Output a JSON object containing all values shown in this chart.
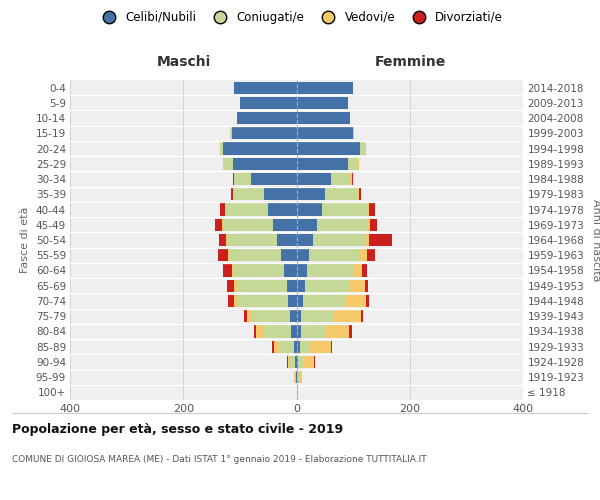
{
  "age_groups": [
    "100+",
    "95-99",
    "90-94",
    "85-89",
    "80-84",
    "75-79",
    "70-74",
    "65-69",
    "60-64",
    "55-59",
    "50-54",
    "45-49",
    "40-44",
    "35-39",
    "30-34",
    "25-29",
    "20-24",
    "15-19",
    "10-14",
    "5-9",
    "0-4"
  ],
  "birth_years": [
    "≤ 1918",
    "1919-1923",
    "1924-1928",
    "1929-1933",
    "1934-1938",
    "1939-1943",
    "1944-1948",
    "1949-1953",
    "1954-1958",
    "1959-1963",
    "1964-1968",
    "1969-1973",
    "1974-1978",
    "1979-1983",
    "1984-1988",
    "1989-1993",
    "1994-1998",
    "1999-2003",
    "2004-2008",
    "2009-2013",
    "2014-2018"
  ],
  "maschi": {
    "celibi": [
      0,
      1,
      3,
      5,
      10,
      12,
      15,
      18,
      22,
      28,
      35,
      42,
      50,
      58,
      80,
      112,
      130,
      115,
      105,
      100,
      110
    ],
    "coniugati": [
      0,
      2,
      8,
      25,
      50,
      68,
      88,
      88,
      90,
      90,
      88,
      88,
      75,
      55,
      30,
      18,
      5,
      2,
      0,
      0,
      0
    ],
    "vedovi": [
      0,
      1,
      5,
      10,
      12,
      8,
      8,
      5,
      3,
      3,
      2,
      2,
      1,
      0,
      0,
      0,
      0,
      0,
      0,
      0,
      0
    ],
    "divorziati": [
      0,
      0,
      2,
      3,
      3,
      5,
      10,
      12,
      15,
      18,
      12,
      12,
      10,
      3,
      3,
      0,
      0,
      0,
      0,
      0,
      0
    ]
  },
  "femmine": {
    "nubili": [
      0,
      1,
      3,
      5,
      8,
      8,
      12,
      15,
      18,
      22,
      28,
      35,
      45,
      50,
      60,
      90,
      112,
      100,
      95,
      90,
      100
    ],
    "coniugate": [
      0,
      3,
      8,
      18,
      42,
      58,
      75,
      78,
      82,
      90,
      92,
      90,
      80,
      58,
      35,
      18,
      10,
      2,
      0,
      0,
      0
    ],
    "vedove": [
      0,
      5,
      20,
      38,
      42,
      48,
      35,
      28,
      15,
      12,
      8,
      5,
      3,
      2,
      2,
      2,
      0,
      0,
      0,
      0,
      0
    ],
    "divorziate": [
      0,
      0,
      2,
      2,
      5,
      3,
      5,
      5,
      10,
      15,
      40,
      12,
      10,
      3,
      3,
      0,
      0,
      0,
      0,
      0,
      0
    ]
  },
  "color_celibi": "#4472a8",
  "color_coniugati": "#c5d898",
  "color_vedovi": "#f5c96a",
  "color_divorziati": "#cc2020",
  "xlim": 400,
  "title": "Popolazione per età, sesso e stato civile - 2019",
  "subtitle": "COMUNE DI GIOIOSA MAREA (ME) - Dati ISTAT 1° gennaio 2019 - Elaborazione TUTTITALIA.IT",
  "ylabel_left": "Fasce di età",
  "ylabel_right": "Anni di nascita",
  "label_maschi": "Maschi",
  "label_femmine": "Femmine",
  "bg_color": "#efefef",
  "grid_color": "#cccccc",
  "legend_labels": [
    "Celibi/Nubili",
    "Coniugati/e",
    "Vedovi/e",
    "Divorziati/e"
  ]
}
